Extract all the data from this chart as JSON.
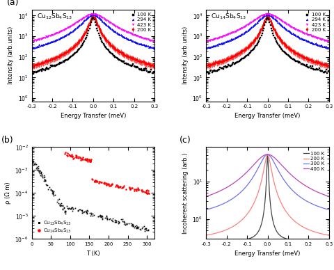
{
  "panel_a1_title": "Cu$_{12}$Sb$_4$S$_{13}$",
  "panel_a2_title": "Cu$_{14}$Sb$_4$S$_{13}$",
  "panel_a_xlabel": "Energy Transfer (meV)",
  "panel_a_ylabel": "Intensity (arb.units)",
  "panel_a_temps": [
    "100 K",
    "200 K",
    "294 K",
    "423 K"
  ],
  "panel_a_colors": [
    "black",
    "red",
    "blue",
    "magenta"
  ],
  "panel_a_markers": [
    "s",
    ".",
    "^",
    "v"
  ],
  "panel_a_xlim": [
    -0.3,
    0.3
  ],
  "panel_b_xlabel": "T (K)",
  "panel_b_ylabel": "ρ (Ω m)",
  "panel_b_label1": "Cu$_{12}$Sb$_4$S$_{13}$",
  "panel_b_label2": "Cu$_{14}$Sb$_4$S$_{13}$",
  "panel_b_color1": "black",
  "panel_b_color2": "red",
  "panel_b_xlim": [
    0,
    320
  ],
  "panel_b_ylim": [
    1e-06,
    0.01
  ],
  "panel_c_xlabel": "Energy Transfer (meV)",
  "panel_c_ylabel": "Incoherent scattering (arb.)",
  "panel_c_temps": [
    "100 K",
    "200 K",
    "300 K",
    "400 K"
  ],
  "panel_c_colors": [
    "#444444",
    "#FF8080",
    "#7070EE",
    "#BB44BB"
  ],
  "panel_c_xlim": [
    -0.3,
    0.3
  ],
  "panel_c_ylim_low": 0.3,
  "panel_c_ylim_high": 80,
  "label_a": "(a)",
  "label_b": "(b)",
  "label_c": "(c)"
}
